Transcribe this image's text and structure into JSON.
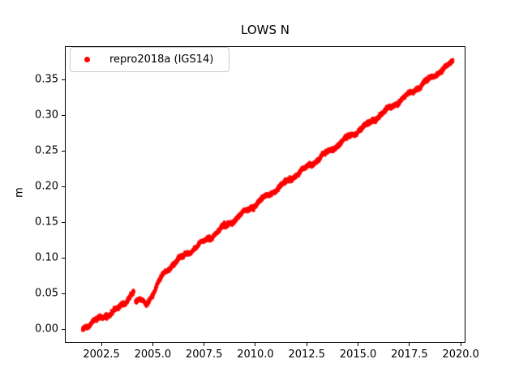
{
  "chart_data": {
    "type": "scatter",
    "title": "LOWS N",
    "xlabel": "",
    "ylabel": "m",
    "xlim": [
      2000.72,
      2020.23
    ],
    "ylim": [
      -0.0193,
      0.397
    ],
    "grid": false,
    "xticks": [
      2002.5,
      2005.0,
      2007.5,
      2010.0,
      2012.5,
      2015.0,
      2017.5,
      2020.0
    ],
    "xtick_labels": [
      "2002.5",
      "2005.0",
      "2007.5",
      "2010.0",
      "2012.5",
      "2015.0",
      "2017.5",
      "2020.0"
    ],
    "yticks": [
      0.0,
      0.05,
      0.1,
      0.15,
      0.2,
      0.25,
      0.3,
      0.35
    ],
    "ytick_labels": [
      "0.00",
      "0.05",
      "0.10",
      "0.15",
      "0.20",
      "0.25",
      "0.30",
      "0.35"
    ],
    "legend": {
      "position": "upper left",
      "entries": [
        {
          "label": "repro2018a (IGS14)",
          "marker": "circle",
          "color": "#ff0000"
        }
      ]
    },
    "series": [
      {
        "name": "repro2018a (IGS14)",
        "color": "#ff0000",
        "marker": "point",
        "start_yr": 2001.58,
        "end_yr": 2019.62,
        "anchor_points_year_m": [
          [
            2001.58,
            0.0
          ],
          [
            2001.9,
            0.007
          ],
          [
            2002.15,
            0.013
          ],
          [
            2002.45,
            0.0135
          ],
          [
            2002.8,
            0.02
          ],
          [
            2003.1,
            0.027
          ],
          [
            2003.4,
            0.03
          ],
          [
            2003.7,
            0.038
          ],
          [
            2003.95,
            0.05
          ],
          [
            2004.07,
            0.0555
          ],
          [
            2004.17,
            0.037
          ],
          [
            2004.35,
            0.0405
          ],
          [
            2004.55,
            0.0375
          ],
          [
            2004.68,
            0.035
          ],
          [
            2004.9,
            0.044
          ],
          [
            2005.15,
            0.058
          ],
          [
            2005.5,
            0.076
          ],
          [
            2006.0,
            0.092
          ],
          [
            2006.5,
            0.102
          ],
          [
            2007.0,
            0.113
          ],
          [
            2007.5,
            0.123
          ],
          [
            2008.0,
            0.133
          ],
          [
            2008.5,
            0.144
          ],
          [
            2009.0,
            0.154
          ],
          [
            2009.5,
            0.165
          ],
          [
            2010.0,
            0.175
          ],
          [
            2010.5,
            0.185
          ],
          [
            2011.0,
            0.196
          ],
          [
            2011.5,
            0.206
          ],
          [
            2012.0,
            0.217
          ],
          [
            2012.5,
            0.227
          ],
          [
            2013.0,
            0.237
          ],
          [
            2013.5,
            0.248
          ],
          [
            2014.0,
            0.258
          ],
          [
            2014.5,
            0.269
          ],
          [
            2015.0,
            0.278
          ],
          [
            2015.5,
            0.288
          ],
          [
            2016.0,
            0.299
          ],
          [
            2016.5,
            0.309
          ],
          [
            2017.0,
            0.32
          ],
          [
            2017.5,
            0.33
          ],
          [
            2018.0,
            0.341
          ],
          [
            2018.5,
            0.351
          ],
          [
            2019.0,
            0.362
          ],
          [
            2019.3,
            0.368
          ],
          [
            2019.62,
            0.375
          ]
        ],
        "gaps": [
          [
            2004.08,
            2004.16
          ]
        ],
        "seasonal_amplitude_m": 0.0022,
        "seasonal_period_yr": 1.0,
        "seasonal_phase_yr": 0.15,
        "scatter_sd_m": 0.0014,
        "points_per_year": 320
      }
    ]
  }
}
